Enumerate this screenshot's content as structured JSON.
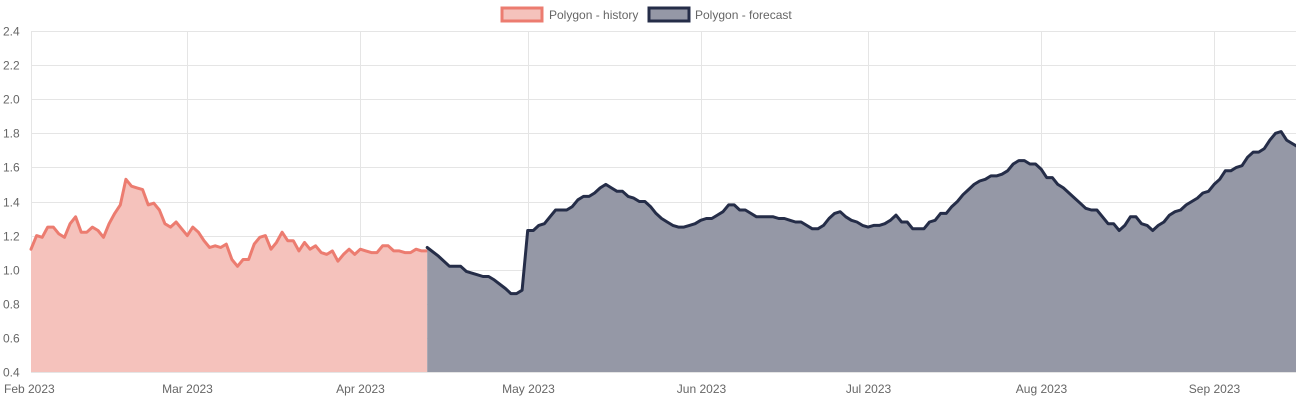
{
  "chart_data": {
    "type": "area",
    "title": "",
    "xlabel": "",
    "ylabel": "",
    "x_tick_labels": [
      "Feb 2023",
      "Mar 2023",
      "Apr 2023",
      "May 2023",
      "Jun 2023",
      "Jul 2023",
      "Aug 2023",
      "Sep 2023"
    ],
    "y_ticks": [
      "0.4",
      "0.6",
      "0.8",
      "1.0",
      "1.2",
      "1.4",
      "1.6",
      "1.8",
      "2.0",
      "2.2",
      "2.4"
    ],
    "ylim": [
      0.4,
      2.4
    ],
    "xlim": [
      "2023-02-01",
      "2023-09-14"
    ],
    "grid": true,
    "legend_position": "top-center",
    "series": [
      {
        "name": "Polygon - history",
        "color": "#ec7c70",
        "fill": "#f5c2bc",
        "points": [
          [
            "2023-02-01",
            1.12
          ],
          [
            "2023-02-02",
            1.2
          ],
          [
            "2023-02-03",
            1.19
          ],
          [
            "2023-02-04",
            1.25
          ],
          [
            "2023-02-05",
            1.25
          ],
          [
            "2023-02-06",
            1.21
          ],
          [
            "2023-02-07",
            1.19
          ],
          [
            "2023-02-08",
            1.27
          ],
          [
            "2023-02-09",
            1.31
          ],
          [
            "2023-02-10",
            1.22
          ],
          [
            "2023-02-11",
            1.22
          ],
          [
            "2023-02-12",
            1.25
          ],
          [
            "2023-02-13",
            1.23
          ],
          [
            "2023-02-14",
            1.19
          ],
          [
            "2023-02-15",
            1.27
          ],
          [
            "2023-02-16",
            1.33
          ],
          [
            "2023-02-17",
            1.38
          ],
          [
            "2023-02-18",
            1.53
          ],
          [
            "2023-02-19",
            1.49
          ],
          [
            "2023-02-20",
            1.48
          ],
          [
            "2023-02-21",
            1.47
          ],
          [
            "2023-02-22",
            1.38
          ],
          [
            "2023-02-23",
            1.39
          ],
          [
            "2023-02-24",
            1.35
          ],
          [
            "2023-02-25",
            1.27
          ],
          [
            "2023-02-26",
            1.25
          ],
          [
            "2023-02-27",
            1.28
          ],
          [
            "2023-02-28",
            1.24
          ],
          [
            "2023-03-01",
            1.2
          ],
          [
            "2023-03-02",
            1.25
          ],
          [
            "2023-03-03",
            1.22
          ],
          [
            "2023-03-04",
            1.17
          ],
          [
            "2023-03-05",
            1.13
          ],
          [
            "2023-03-06",
            1.14
          ],
          [
            "2023-03-07",
            1.13
          ],
          [
            "2023-03-08",
            1.15
          ],
          [
            "2023-03-09",
            1.06
          ],
          [
            "2023-03-10",
            1.02
          ],
          [
            "2023-03-11",
            1.06
          ],
          [
            "2023-03-12",
            1.06
          ],
          [
            "2023-03-13",
            1.15
          ],
          [
            "2023-03-14",
            1.19
          ],
          [
            "2023-03-15",
            1.2
          ],
          [
            "2023-03-16",
            1.12
          ],
          [
            "2023-03-17",
            1.16
          ],
          [
            "2023-03-18",
            1.22
          ],
          [
            "2023-03-19",
            1.17
          ],
          [
            "2023-03-20",
            1.17
          ],
          [
            "2023-03-21",
            1.11
          ],
          [
            "2023-03-22",
            1.16
          ],
          [
            "2023-03-23",
            1.12
          ],
          [
            "2023-03-24",
            1.14
          ],
          [
            "2023-03-25",
            1.1
          ],
          [
            "2023-03-26",
            1.09
          ],
          [
            "2023-03-27",
            1.11
          ],
          [
            "2023-03-28",
            1.05
          ],
          [
            "2023-03-29",
            1.09
          ],
          [
            "2023-03-30",
            1.12
          ],
          [
            "2023-03-31",
            1.09
          ],
          [
            "2023-04-01",
            1.12
          ],
          [
            "2023-04-02",
            1.11
          ],
          [
            "2023-04-03",
            1.1
          ],
          [
            "2023-04-04",
            1.1
          ],
          [
            "2023-04-05",
            1.14
          ],
          [
            "2023-04-06",
            1.14
          ],
          [
            "2023-04-07",
            1.11
          ],
          [
            "2023-04-08",
            1.11
          ],
          [
            "2023-04-09",
            1.1
          ],
          [
            "2023-04-10",
            1.1
          ],
          [
            "2023-04-11",
            1.12
          ],
          [
            "2023-04-12",
            1.11
          ],
          [
            "2023-04-13",
            1.11
          ]
        ]
      },
      {
        "name": "Polygon - forecast",
        "color": "#252d48",
        "fill": "#9598a6",
        "points": [
          [
            "2023-04-13",
            1.13
          ],
          [
            "2023-04-15",
            1.08
          ],
          [
            "2023-04-17",
            1.02
          ],
          [
            "2023-04-19",
            1.02
          ],
          [
            "2023-04-20",
            0.99
          ],
          [
            "2023-04-22",
            0.97
          ],
          [
            "2023-04-23",
            0.96
          ],
          [
            "2023-04-24",
            0.96
          ],
          [
            "2023-04-25",
            0.94
          ],
          [
            "2023-04-27",
            0.89
          ],
          [
            "2023-04-28",
            0.86
          ],
          [
            "2023-04-29",
            0.86
          ],
          [
            "2023-04-30",
            0.88
          ],
          [
            "2023-05-01",
            1.23
          ],
          [
            "2023-05-02",
            1.23
          ],
          [
            "2023-05-03",
            1.26
          ],
          [
            "2023-05-04",
            1.27
          ],
          [
            "2023-05-05",
            1.31
          ],
          [
            "2023-05-06",
            1.35
          ],
          [
            "2023-05-08",
            1.35
          ],
          [
            "2023-05-09",
            1.37
          ],
          [
            "2023-05-10",
            1.41
          ],
          [
            "2023-05-11",
            1.43
          ],
          [
            "2023-05-12",
            1.43
          ],
          [
            "2023-05-13",
            1.45
          ],
          [
            "2023-05-14",
            1.48
          ],
          [
            "2023-05-15",
            1.5
          ],
          [
            "2023-05-16",
            1.48
          ],
          [
            "2023-05-17",
            1.46
          ],
          [
            "2023-05-18",
            1.46
          ],
          [
            "2023-05-19",
            1.43
          ],
          [
            "2023-05-20",
            1.42
          ],
          [
            "2023-05-21",
            1.4
          ],
          [
            "2023-05-22",
            1.4
          ],
          [
            "2023-05-23",
            1.37
          ],
          [
            "2023-05-24",
            1.33
          ],
          [
            "2023-05-25",
            1.3
          ],
          [
            "2023-05-26",
            1.28
          ],
          [
            "2023-05-27",
            1.26
          ],
          [
            "2023-05-28",
            1.25
          ],
          [
            "2023-05-29",
            1.25
          ],
          [
            "2023-05-30",
            1.26
          ],
          [
            "2023-05-31",
            1.27
          ],
          [
            "2023-06-01",
            1.29
          ],
          [
            "2023-06-02",
            1.3
          ],
          [
            "2023-06-03",
            1.3
          ],
          [
            "2023-06-04",
            1.32
          ],
          [
            "2023-06-05",
            1.34
          ],
          [
            "2023-06-06",
            1.38
          ],
          [
            "2023-06-07",
            1.38
          ],
          [
            "2023-06-08",
            1.35
          ],
          [
            "2023-06-09",
            1.35
          ],
          [
            "2023-06-10",
            1.33
          ],
          [
            "2023-06-11",
            1.31
          ],
          [
            "2023-06-12",
            1.31
          ],
          [
            "2023-06-13",
            1.31
          ],
          [
            "2023-06-14",
            1.31
          ],
          [
            "2023-06-15",
            1.3
          ],
          [
            "2023-06-16",
            1.3
          ],
          [
            "2023-06-17",
            1.29
          ],
          [
            "2023-06-18",
            1.28
          ],
          [
            "2023-06-19",
            1.28
          ],
          [
            "2023-06-20",
            1.26
          ],
          [
            "2023-06-21",
            1.24
          ],
          [
            "2023-06-22",
            1.24
          ],
          [
            "2023-06-23",
            1.26
          ],
          [
            "2023-06-24",
            1.3
          ],
          [
            "2023-06-25",
            1.33
          ],
          [
            "2023-06-26",
            1.34
          ],
          [
            "2023-06-27",
            1.31
          ],
          [
            "2023-06-28",
            1.29
          ],
          [
            "2023-06-29",
            1.28
          ],
          [
            "2023-06-30",
            1.26
          ],
          [
            "2023-07-01",
            1.25
          ],
          [
            "2023-07-02",
            1.26
          ],
          [
            "2023-07-03",
            1.26
          ],
          [
            "2023-07-04",
            1.27
          ],
          [
            "2023-07-05",
            1.29
          ],
          [
            "2023-07-06",
            1.32
          ],
          [
            "2023-07-07",
            1.28
          ],
          [
            "2023-07-08",
            1.28
          ],
          [
            "2023-07-09",
            1.24
          ],
          [
            "2023-07-10",
            1.24
          ],
          [
            "2023-07-11",
            1.24
          ],
          [
            "2023-07-12",
            1.28
          ],
          [
            "2023-07-13",
            1.29
          ],
          [
            "2023-07-14",
            1.33
          ],
          [
            "2023-07-15",
            1.33
          ],
          [
            "2023-07-16",
            1.37
          ],
          [
            "2023-07-17",
            1.4
          ],
          [
            "2023-07-18",
            1.44
          ],
          [
            "2023-07-19",
            1.47
          ],
          [
            "2023-07-20",
            1.5
          ],
          [
            "2023-07-21",
            1.52
          ],
          [
            "2023-07-22",
            1.53
          ],
          [
            "2023-07-23",
            1.55
          ],
          [
            "2023-07-24",
            1.55
          ],
          [
            "2023-07-25",
            1.56
          ],
          [
            "2023-07-26",
            1.58
          ],
          [
            "2023-07-27",
            1.62
          ],
          [
            "2023-07-28",
            1.64
          ],
          [
            "2023-07-29",
            1.64
          ],
          [
            "2023-07-30",
            1.62
          ],
          [
            "2023-07-31",
            1.62
          ],
          [
            "2023-08-01",
            1.59
          ],
          [
            "2023-08-02",
            1.54
          ],
          [
            "2023-08-03",
            1.54
          ],
          [
            "2023-08-04",
            1.5
          ],
          [
            "2023-08-05",
            1.48
          ],
          [
            "2023-08-06",
            1.45
          ],
          [
            "2023-08-07",
            1.42
          ],
          [
            "2023-08-08",
            1.39
          ],
          [
            "2023-08-09",
            1.36
          ],
          [
            "2023-08-10",
            1.35
          ],
          [
            "2023-08-11",
            1.35
          ],
          [
            "2023-08-12",
            1.31
          ],
          [
            "2023-08-13",
            1.27
          ],
          [
            "2023-08-14",
            1.27
          ],
          [
            "2023-08-15",
            1.23
          ],
          [
            "2023-08-16",
            1.26
          ],
          [
            "2023-08-17",
            1.31
          ],
          [
            "2023-08-18",
            1.31
          ],
          [
            "2023-08-19",
            1.27
          ],
          [
            "2023-08-20",
            1.26
          ],
          [
            "2023-08-21",
            1.23
          ],
          [
            "2023-08-22",
            1.26
          ],
          [
            "2023-08-23",
            1.28
          ],
          [
            "2023-08-24",
            1.32
          ],
          [
            "2023-08-25",
            1.34
          ],
          [
            "2023-08-26",
            1.35
          ],
          [
            "2023-08-27",
            1.38
          ],
          [
            "2023-08-28",
            1.4
          ],
          [
            "2023-08-29",
            1.42
          ],
          [
            "2023-08-30",
            1.45
          ],
          [
            "2023-08-31",
            1.46
          ],
          [
            "2023-09-01",
            1.5
          ],
          [
            "2023-09-02",
            1.53
          ],
          [
            "2023-09-03",
            1.58
          ],
          [
            "2023-09-04",
            1.58
          ],
          [
            "2023-09-05",
            1.6
          ],
          [
            "2023-09-06",
            1.61
          ],
          [
            "2023-09-07",
            1.66
          ],
          [
            "2023-09-08",
            1.69
          ],
          [
            "2023-09-09",
            1.69
          ],
          [
            "2023-09-10",
            1.71
          ],
          [
            "2023-09-11",
            1.76
          ],
          [
            "2023-09-12",
            1.8
          ],
          [
            "2023-09-13",
            1.81
          ],
          [
            "2023-09-14",
            1.76
          ],
          [
            "2023-09-15",
            1.74
          ],
          [
            "2023-09-16",
            1.72
          ],
          [
            "2023-09-17",
            1.72
          ]
        ]
      }
    ]
  }
}
